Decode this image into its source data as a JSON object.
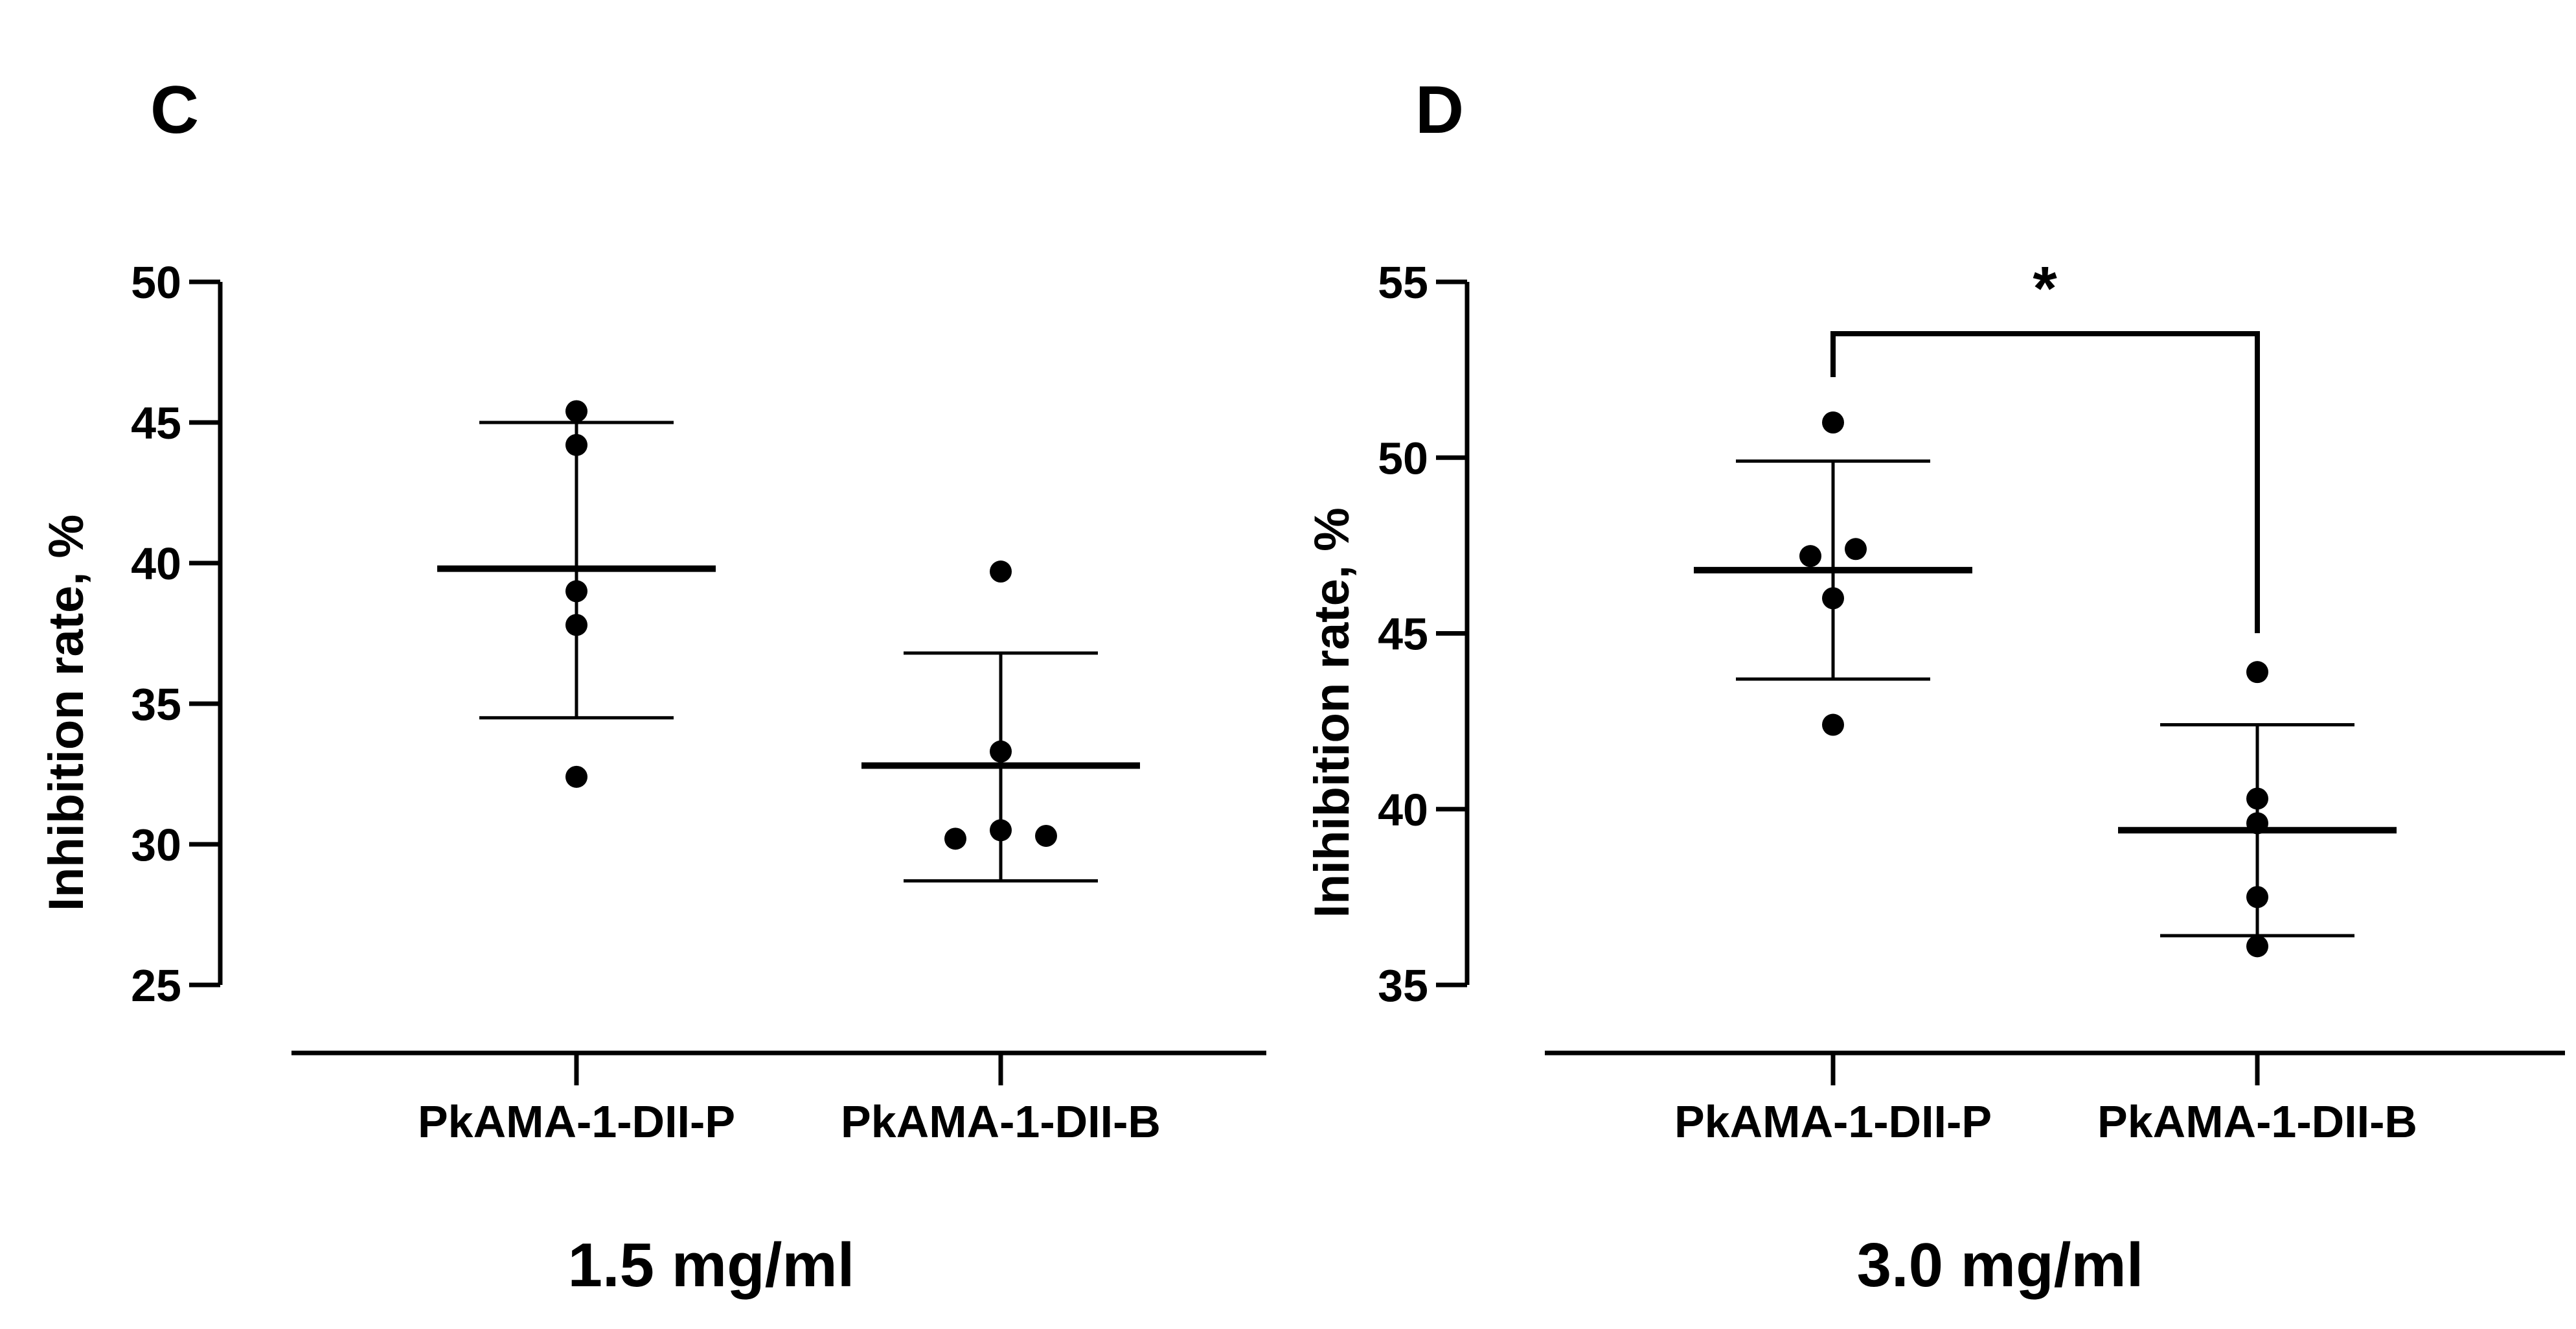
{
  "chart_data": [
    {
      "type": "scatter",
      "panel": "C",
      "concentration": "1.5 mg/ml",
      "ylabel": "Inhibition rate, %",
      "xlabel": "",
      "ylim": [
        25,
        50
      ],
      "yticks": [
        25,
        30,
        35,
        40,
        45,
        50
      ],
      "categories": [
        "PkAMA-1-DII-P",
        "PkAMA-1-DII-B"
      ],
      "groups": [
        {
          "name": "PkAMA-1-DII-P",
          "points": [
            45.4,
            44.2,
            39.0,
            37.8,
            32.4
          ],
          "mean": 39.8,
          "sd_low": 34.5,
          "sd_high": 45.0
        },
        {
          "name": "PkAMA-1-DII-B",
          "points": [
            39.7,
            33.3,
            30.5,
            30.3,
            30.2
          ],
          "mean": 32.8,
          "sd_low": 28.7,
          "sd_high": 36.8
        }
      ],
      "significance": null
    },
    {
      "type": "scatter",
      "panel": "D",
      "concentration": "3.0 mg/ml",
      "ylabel": "Inihibition rate, %",
      "xlabel": "",
      "ylim": [
        35,
        55
      ],
      "yticks": [
        35,
        40,
        45,
        50,
        55
      ],
      "categories": [
        "PkAMA-1-DII-P",
        "PkAMA-1-DII-B"
      ],
      "groups": [
        {
          "name": "PkAMA-1-DII-P",
          "points": [
            51.0,
            47.4,
            47.2,
            46.0,
            42.4
          ],
          "mean": 46.8,
          "sd_low": 43.7,
          "sd_high": 49.9
        },
        {
          "name": "PkAMA-1-DII-B",
          "points": [
            43.9,
            40.3,
            39.6,
            37.5,
            36.1
          ],
          "mean": 39.4,
          "sd_low": 36.4,
          "sd_high": 42.4
        }
      ],
      "significance": {
        "between": [
          "PkAMA-1-DII-P",
          "PkAMA-1-DII-B"
        ],
        "label": "*"
      }
    }
  ]
}
